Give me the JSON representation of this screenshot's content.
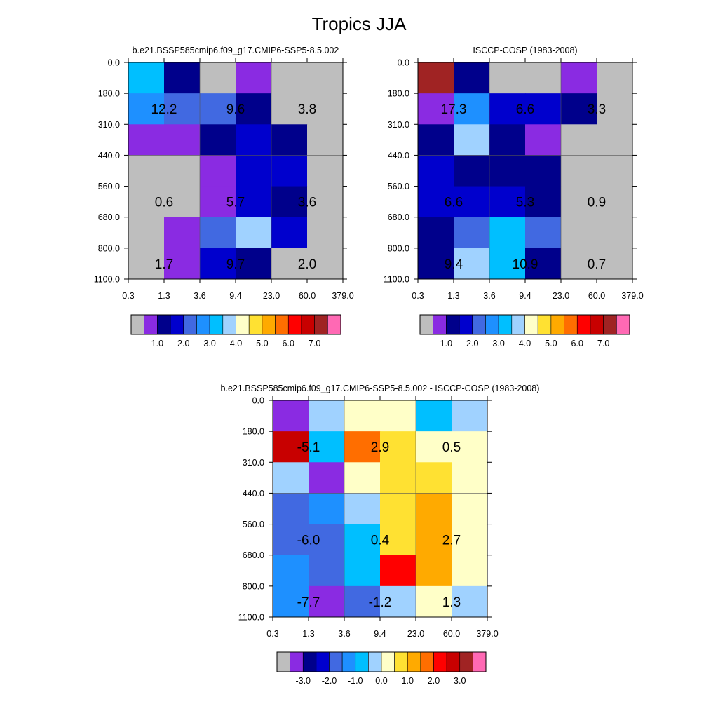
{
  "figure_title": "Tropics JJA",
  "chart_data": [
    {
      "type": "heatmap",
      "title": "b.e21.BSSP585cmip6.f09_g17.CMIP6-SSP5-8.5.002",
      "x_ticks": [
        "0.3",
        "1.3",
        "3.6",
        "9.4",
        "23.0",
        "60.0",
        "379.0"
      ],
      "y_ticks": [
        "0.0",
        "180.0",
        "310.0",
        "440.0",
        "560.0",
        "680.0",
        "800.0",
        "1100.0"
      ],
      "cell_color_index": [
        [
          6,
          2,
          0,
          1,
          0,
          0
        ],
        [
          5,
          4,
          4,
          2,
          0,
          0
        ],
        [
          1,
          1,
          2,
          3,
          2,
          0
        ],
        [
          0,
          0,
          1,
          3,
          3,
          0
        ],
        [
          0,
          0,
          1,
          3,
          2,
          0
        ],
        [
          0,
          1,
          4,
          7,
          3,
          0
        ],
        [
          0,
          1,
          3,
          2,
          0,
          0
        ]
      ],
      "annotations": [
        {
          "row": 1,
          "col": 0.5,
          "text": "12.2"
        },
        {
          "row": 1,
          "col": 2.5,
          "text": "9.6"
        },
        {
          "row": 1,
          "col": 4.5,
          "text": "3.8"
        },
        {
          "row": 4,
          "col": 0.5,
          "text": "0.6"
        },
        {
          "row": 4,
          "col": 2.5,
          "text": "5.7"
        },
        {
          "row": 4,
          "col": 4.5,
          "text": "3.6"
        },
        {
          "row": 6,
          "col": 0.5,
          "text": "1.7"
        },
        {
          "row": 6,
          "col": 2.5,
          "text": "9.7"
        },
        {
          "row": 6,
          "col": 4.5,
          "text": "2.0"
        }
      ],
      "colorbar": {
        "palette": "abs",
        "labels": [
          "1.0",
          "2.0",
          "3.0",
          "4.0",
          "5.0",
          "6.0",
          "7.0"
        ]
      }
    },
    {
      "type": "heatmap",
      "title": "ISCCP-COSP (1983-2008)",
      "x_ticks": [
        "0.3",
        "1.3",
        "3.6",
        "9.4",
        "23.0",
        "60.0",
        "379.0"
      ],
      "y_ticks": [
        "0.0",
        "180.0",
        "310.0",
        "440.0",
        "560.0",
        "680.0",
        "800.0",
        "1100.0"
      ],
      "cell_color_index": [
        [
          14,
          2,
          0,
          0,
          1,
          0
        ],
        [
          1,
          5,
          3,
          3,
          2,
          0
        ],
        [
          2,
          7,
          2,
          1,
          0,
          0
        ],
        [
          3,
          2,
          2,
          2,
          0,
          0
        ],
        [
          3,
          3,
          3,
          2,
          0,
          0
        ],
        [
          2,
          4,
          6,
          4,
          0,
          0
        ],
        [
          2,
          7,
          6,
          2,
          0,
          0
        ]
      ],
      "annotations": [
        {
          "row": 1,
          "col": 0.5,
          "text": "17.3"
        },
        {
          "row": 1,
          "col": 2.5,
          "text": "6.6"
        },
        {
          "row": 1,
          "col": 4.5,
          "text": "3.3"
        },
        {
          "row": 4,
          "col": 0.5,
          "text": "6.6"
        },
        {
          "row": 4,
          "col": 2.5,
          "text": "5.3"
        },
        {
          "row": 4,
          "col": 4.5,
          "text": "0.9"
        },
        {
          "row": 6,
          "col": 0.5,
          "text": "9.4"
        },
        {
          "row": 6,
          "col": 2.5,
          "text": "10.9"
        },
        {
          "row": 6,
          "col": 4.5,
          "text": "0.7"
        }
      ],
      "colorbar": {
        "palette": "abs",
        "labels": [
          "1.0",
          "2.0",
          "3.0",
          "4.0",
          "5.0",
          "6.0",
          "7.0"
        ]
      }
    },
    {
      "type": "heatmap",
      "title": "b.e21.BSSP585cmip6.f09_g17.CMIP6-SSP5-8.5.002 - ISCCP-COSP (1983-2008)",
      "x_ticks": [
        "0.3",
        "1.3",
        "3.6",
        "9.4",
        "23.0",
        "60.0",
        "379.0"
      ],
      "y_ticks": [
        "0.0",
        "180.0",
        "310.0",
        "440.0",
        "560.0",
        "680.0",
        "800.0",
        "1100.0"
      ],
      "cell_color_index": [
        [
          1,
          7,
          8,
          8,
          6,
          7
        ],
        [
          13,
          6,
          11,
          9,
          8,
          8
        ],
        [
          7,
          1,
          8,
          9,
          9,
          8
        ],
        [
          4,
          5,
          7,
          9,
          10,
          8
        ],
        [
          4,
          4,
          6,
          9,
          10,
          8
        ],
        [
          5,
          4,
          6,
          12,
          10,
          8
        ],
        [
          5,
          1,
          4,
          7,
          8,
          7
        ]
      ],
      "annotations": [
        {
          "row": 1,
          "col": 0.5,
          "text": "-5.1"
        },
        {
          "row": 1,
          "col": 2.5,
          "text": "2.9"
        },
        {
          "row": 1,
          "col": 4.5,
          "text": "0.5"
        },
        {
          "row": 4,
          "col": 0.5,
          "text": "-6.0"
        },
        {
          "row": 4,
          "col": 2.5,
          "text": "0.4"
        },
        {
          "row": 4,
          "col": 4.5,
          "text": "2.7"
        },
        {
          "row": 6,
          "col": 0.5,
          "text": "-7.7"
        },
        {
          "row": 6,
          "col": 2.5,
          "text": "-1.2"
        },
        {
          "row": 6,
          "col": 4.5,
          "text": "1.3"
        }
      ],
      "colorbar": {
        "palette": "diff",
        "labels": [
          "-3.0",
          "-2.0",
          "-1.0",
          "0.0",
          "1.0",
          "2.0",
          "3.0"
        ]
      }
    }
  ],
  "palettes": {
    "abs": [
      "#bebebe",
      "#8a2be2",
      "#00008b",
      "#0000cd",
      "#4169e1",
      "#1e90ff",
      "#00bfff",
      "#a0d2ff",
      "#ffffc8",
      "#ffe132",
      "#ffaa00",
      "#ff6e00",
      "#ff0000",
      "#c80000",
      "#a02323",
      "#ff69b4"
    ],
    "diff": [
      "#bebebe",
      "#8a2be2",
      "#00008b",
      "#0000cd",
      "#4169e1",
      "#1e90ff",
      "#00bfff",
      "#a0d2ff",
      "#ffffc8",
      "#ffe132",
      "#ffaa00",
      "#ff6e00",
      "#ff0000",
      "#c80000",
      "#a02323",
      "#ff69b4"
    ],
    "cell_colors": [
      "#bebebe",
      "#8a2be2",
      "#00008b",
      "#0000cd",
      "#4169e1",
      "#1e90ff",
      "#00bfff",
      "#a0d2ff",
      "#ffffc8",
      "#ffe132",
      "#ffaa00",
      "#ff6e00",
      "#ff0000",
      "#c80000",
      "#a02323",
      "#ff69b4"
    ]
  }
}
